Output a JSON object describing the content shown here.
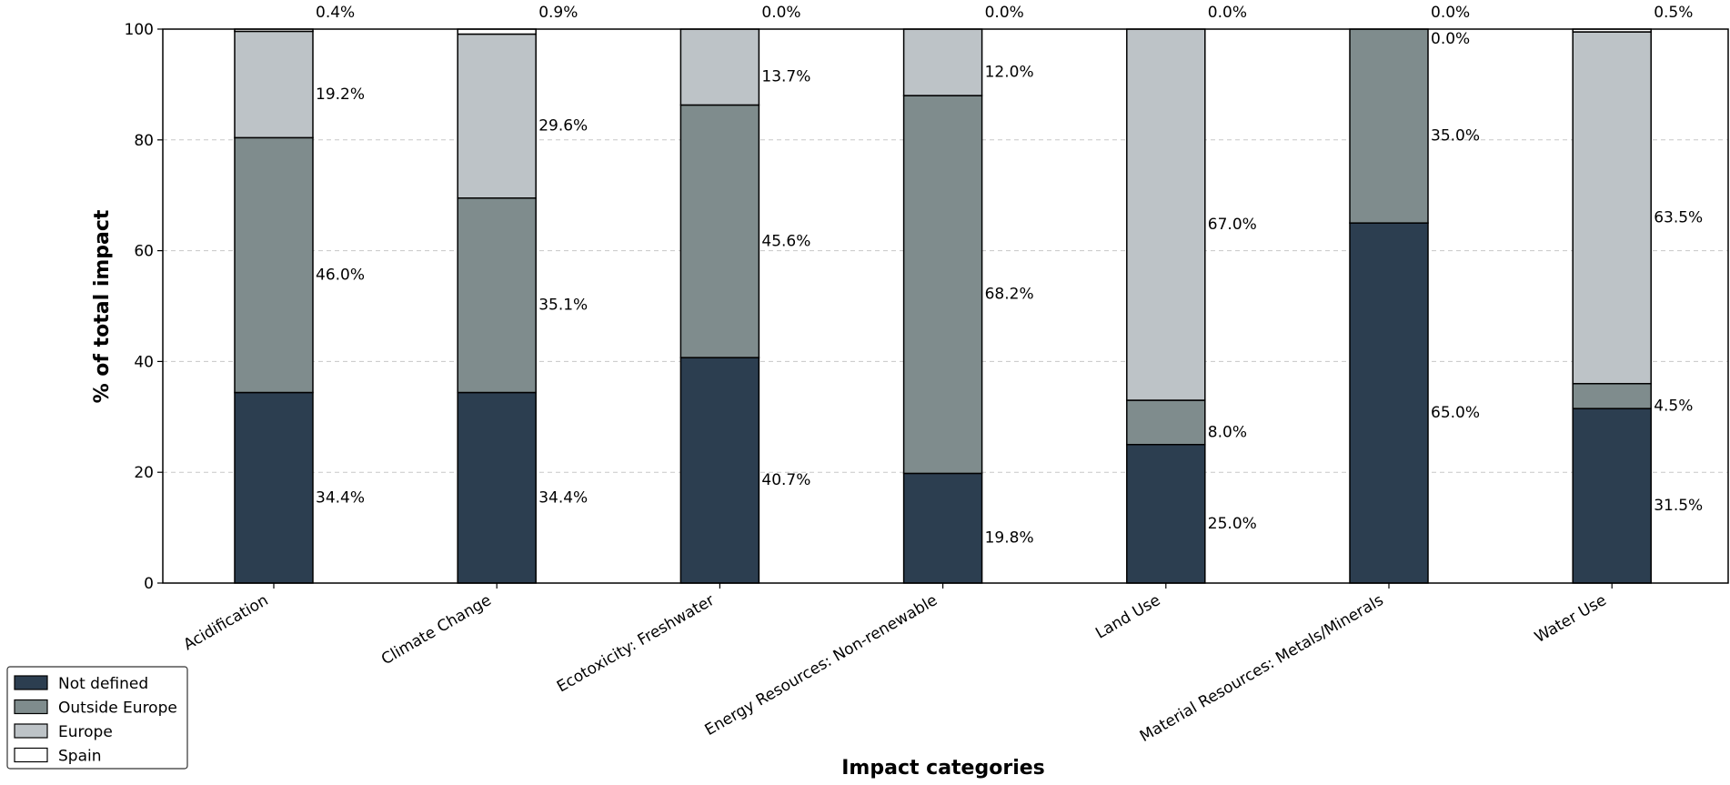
{
  "chart_data": {
    "type": "bar",
    "stacked": true,
    "title": "",
    "xlabel": "Impact categories",
    "ylabel": "% of total impact",
    "ylim": [
      0,
      100
    ],
    "yticks": [
      0,
      20,
      40,
      60,
      80,
      100
    ],
    "grid": "y-dashed",
    "legend_position": "bottom-left",
    "categories": [
      "Acidification",
      "Climate Change",
      "Ecotoxicity: Freshwater",
      "Energy Resources: Non-renewable",
      "Land Use",
      "Material Resources: Metals/Minerals",
      "Water Use"
    ],
    "series": [
      {
        "name": "Not defined",
        "color": "#2c3e50",
        "values": [
          34.4,
          34.4,
          40.7,
          19.8,
          25.0,
          65.0,
          31.5
        ],
        "labels": [
          "34.4%",
          "34.4%",
          "40.7%",
          "19.8%",
          "25.0%",
          "65.0%",
          "31.5%"
        ]
      },
      {
        "name": "Outside Europe",
        "color": "#7f8c8d",
        "values": [
          46.0,
          35.1,
          45.6,
          68.2,
          8.0,
          35.0,
          4.5
        ],
        "labels": [
          "46.0%",
          "35.1%",
          "45.6%",
          "68.2%",
          "8.0%",
          "35.0%",
          "4.5%"
        ]
      },
      {
        "name": "Europe",
        "color": "#bdc3c7",
        "values": [
          19.2,
          29.6,
          13.7,
          12.0,
          67.0,
          0.0,
          63.5
        ],
        "labels": [
          "19.2%",
          "29.6%",
          "13.7%",
          "12.0%",
          "67.0%",
          "0.0%",
          "63.5%"
        ]
      },
      {
        "name": "Spain",
        "color": "#ffffff",
        "values": [
          0.4,
          0.9,
          0.0,
          0.0,
          0.0,
          0.0,
          0.5
        ],
        "labels": [
          "0.4%",
          "0.9%",
          "0.0%",
          "0.0%",
          "0.0%",
          "0.0%",
          "0.5%"
        ]
      }
    ]
  }
}
